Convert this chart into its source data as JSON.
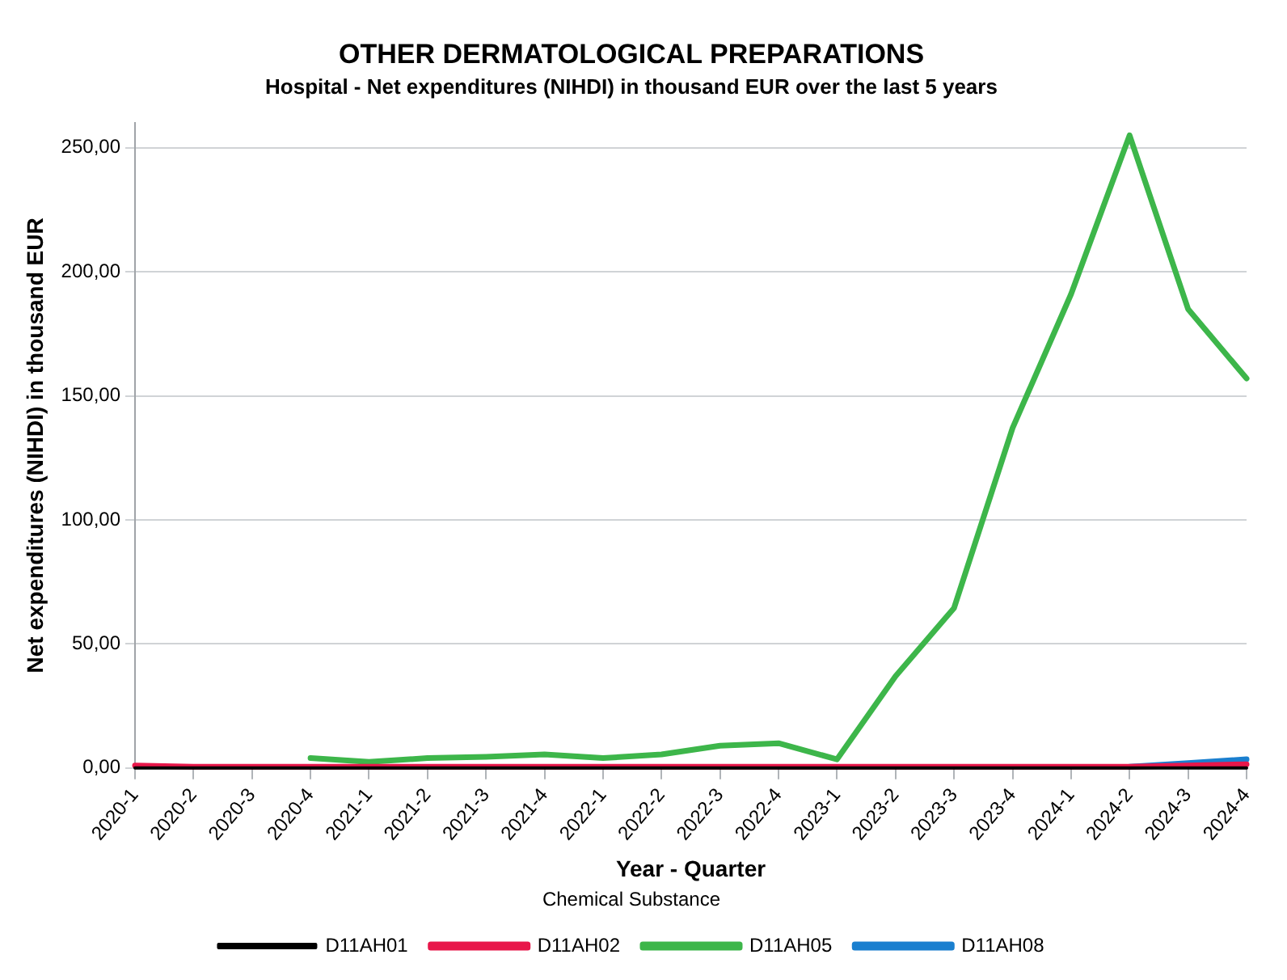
{
  "chart_data": {
    "type": "line",
    "title": "OTHER DERMATOLOGICAL PREPARATIONS",
    "subtitle": "Hospital - Net expenditures (NIHDI) in thousand EUR over the last 5 years",
    "xlabel": "Year - Quarter",
    "ylabel": "Net expenditures (NIHDI) in thousand EUR",
    "legend_title": "Chemical Substance",
    "categories": [
      "2020-1",
      "2020-2",
      "2020-3",
      "2020-4",
      "2021-1",
      "2021-2",
      "2021-3",
      "2021-4",
      "2022-1",
      "2022-2",
      "2022-3",
      "2022-4",
      "2023-1",
      "2023-2",
      "2023-3",
      "2023-4",
      "2024-1",
      "2024-2",
      "2024-3",
      "2024-4"
    ],
    "series": [
      {
        "name": "D11AH01",
        "color": "#000000",
        "values": [
          0,
          0,
          0,
          0,
          0,
          0,
          0,
          0,
          0,
          0,
          0,
          0,
          0,
          0,
          0,
          0,
          0,
          0,
          0,
          0
        ]
      },
      {
        "name": "D11AH02",
        "color": "#e8174a",
        "values": [
          1,
          0.5,
          0.5,
          0.5,
          0.5,
          0.5,
          0.5,
          0.5,
          0.5,
          0.5,
          0.5,
          0.5,
          0.5,
          0.5,
          0.5,
          0.5,
          0.5,
          0.5,
          1,
          1.5
        ]
      },
      {
        "name": "D11AH05",
        "color": "#3db64a",
        "values": [
          null,
          null,
          null,
          4,
          2.5,
          4,
          4.5,
          5.5,
          4,
          5.5,
          9,
          10,
          3.5,
          37,
          64.5,
          137,
          191,
          255,
          185,
          157
        ]
      },
      {
        "name": "D11AH08",
        "color": "#1a7fcf",
        "values": [
          null,
          null,
          null,
          null,
          null,
          null,
          null,
          null,
          null,
          null,
          null,
          null,
          null,
          null,
          null,
          null,
          null,
          0.5,
          2,
          3.5
        ]
      }
    ],
    "ylim": [
      0,
      260
    ],
    "yticks": [
      {
        "value": 0,
        "label": "0,00"
      },
      {
        "value": 50,
        "label": "50,00"
      },
      {
        "value": 100,
        "label": "100,00"
      },
      {
        "value": 150,
        "label": "150,00"
      },
      {
        "value": 200,
        "label": "200,00"
      },
      {
        "value": 250,
        "label": "250,00"
      }
    ],
    "grid": "y",
    "legend": "bottom",
    "marker": "none",
    "line_style": "solid"
  }
}
